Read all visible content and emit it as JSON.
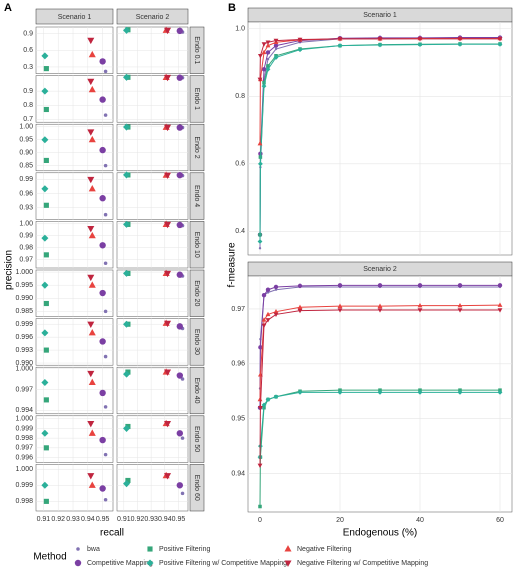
{
  "chart_data": [
    {
      "type": "scatter-grid",
      "label": "A",
      "xlabel": "recall",
      "ylabel": "precision",
      "legend_title": "Method",
      "columns": [
        "Scenario 1",
        "Scenario 2"
      ],
      "xlim": [
        0.905,
        0.957
      ],
      "xticks": [
        0.91,
        0.92,
        0.93,
        0.94,
        0.95
      ],
      "grid": true,
      "series": [
        {
          "name": "bwa",
          "color": "#8172b2",
          "shape": "small-circle"
        },
        {
          "name": "Competitive Mapping",
          "color": "#7b3fa3",
          "shape": "circle"
        },
        {
          "name": "Positive Filtering",
          "color": "#35a67a",
          "shape": "square"
        },
        {
          "name": "Positive Filtering w/ Competitive Mapping",
          "color": "#2bb09a",
          "shape": "diamond"
        },
        {
          "name": "Negative Filtering",
          "color": "#e8433f",
          "shape": "triangle-up"
        },
        {
          "name": "Negative Filtering w/ Competitive Mapping",
          "color": "#c0253f",
          "shape": "triangle-down"
        }
      ],
      "rows": [
        {
          "label": "Endo 0.1",
          "ylim": [
            0.18,
            1.02
          ],
          "yticks": [
            0.3,
            0.6,
            0.9
          ],
          "cells": [
            {
              "x": [
                0.952,
                0.95,
                0.912,
                0.911,
                0.943,
                0.942
              ],
              "y": [
                0.22,
                0.4,
                0.27,
                0.5,
                0.52,
                0.78
              ]
            },
            {
              "x": [
                0.953,
                0.951,
                0.913,
                0.912,
                0.941,
                0.942
              ],
              "y": [
                0.93,
                0.95,
                0.97,
                0.96,
                0.96,
                0.96
              ]
            }
          ]
        },
        {
          "label": "Endo 1",
          "ylim": [
            0.68,
            1.01
          ],
          "yticks": [
            0.7,
            0.8,
            0.9
          ],
          "cells": [
            {
              "x": [
                0.952,
                0.95,
                0.912,
                0.911,
                0.943,
                0.942
              ],
              "y": [
                0.73,
                0.84,
                0.77,
                0.9,
                0.91,
                0.97
              ]
            },
            {
              "x": [
                0.953,
                0.951,
                0.913,
                0.912,
                0.941,
                0.942
              ],
              "y": [
                0.995,
                0.995,
                0.998,
                0.998,
                0.997,
                0.997
              ]
            }
          ]
        },
        {
          "label": "Endo 2",
          "ylim": [
            0.83,
            1.01
          ],
          "yticks": [
            0.85,
            {
              "value": 0.9,
              "label": "0.90"
            },
            0.95,
            {
              "value": 1,
              "label": "1.00"
            }
          ],
          "cells": [
            {
              "x": [
                0.952,
                0.95,
                0.912,
                0.911,
                0.943,
                0.942
              ],
              "y": [
                0.85,
                0.91,
                0.87,
                0.95,
                0.95,
                0.98
              ]
            },
            {
              "x": [
                0.953,
                0.951,
                0.913,
                0.912,
                0.941,
                0.942
              ],
              "y": [
                0.997,
                0.997,
                0.999,
                0.999,
                0.998,
                0.998
              ]
            }
          ]
        },
        {
          "label": "Endo 4",
          "ylim": [
            0.905,
            1.004
          ],
          "yticks": [
            0.93,
            0.96,
            0.99
          ],
          "cells": [
            {
              "x": [
                0.952,
                0.95,
                0.912,
                0.911,
                0.943,
                0.942
              ],
              "y": [
                0.915,
                0.95,
                0.935,
                0.97,
                0.97,
                0.99
              ]
            },
            {
              "x": [
                0.953,
                0.951,
                0.913,
                0.912,
                0.941,
                0.942
              ],
              "y": [
                0.998,
                0.999,
                0.9995,
                0.9995,
                0.999,
                0.999
              ]
            }
          ]
        },
        {
          "label": "Endo 10",
          "ylim": [
            0.963,
            1.002
          ],
          "yticks": [
            0.97,
            0.98,
            0.99,
            {
              "value": 1,
              "label": "1.00"
            }
          ],
          "cells": [
            {
              "x": [
                0.952,
                0.95,
                0.912,
                0.911,
                0.943,
                0.942
              ],
              "y": [
                0.967,
                0.982,
                0.974,
                0.988,
                0.99,
                0.996
              ]
            },
            {
              "x": [
                0.953,
                0.951,
                0.913,
                0.912,
                0.941,
                0.942
              ],
              "y": [
                0.9985,
                0.999,
                0.9995,
                0.9995,
                0.9995,
                0.9995
              ]
            }
          ]
        },
        {
          "label": "Endo 20",
          "ylim": [
            0.983,
            1.0008
          ],
          "yticks": [
            0.985,
            {
              "value": 0.99,
              "label": "0.990"
            },
            0.995,
            {
              "value": 1,
              "label": "1.000"
            }
          ],
          "cells": [
            {
              "x": [
                0.952,
                0.95,
                0.912,
                0.911,
                0.943,
                0.942
              ],
              "y": [
                0.985,
                0.992,
                0.988,
                0.995,
                0.995,
                0.998
              ]
            },
            {
              "x": [
                0.953,
                0.951,
                0.913,
                0.912,
                0.941,
                0.942
              ],
              "y": [
                0.9985,
                0.999,
                0.9995,
                0.9995,
                0.9995,
                0.9995
              ]
            }
          ]
        },
        {
          "label": "Endo 30",
          "ylim": [
            0.9895,
            1.0003
          ],
          "yticks": [
            {
              "value": 0.99,
              "label": "0.990"
            },
            0.993,
            0.996,
            0.999
          ],
          "cells": [
            {
              "x": [
                0.952,
                0.95,
                0.912,
                0.911,
                0.943,
                0.942
              ],
              "y": [
                0.9915,
                0.995,
                0.993,
                0.997,
                0.997,
                0.999
              ]
            },
            {
              "x": [
                0.953,
                0.951,
                0.913,
                0.912,
                0.941,
                0.942
              ],
              "y": [
                0.998,
                0.9985,
                0.999,
                0.999,
                0.9992,
                0.9992
              ]
            }
          ]
        },
        {
          "label": "Endo 40",
          "ylim": [
            0.9935,
            1.0002
          ],
          "yticks": [
            0.994,
            0.997,
            {
              "value": 1,
              "label": "1.000"
            }
          ],
          "cells": [
            {
              "x": [
                0.952,
                0.95,
                0.912,
                0.911,
                0.943,
                0.942
              ],
              "y": [
                0.9945,
                0.9965,
                0.9955,
                0.998,
                0.998,
                0.9993
              ]
            },
            {
              "x": [
                0.953,
                0.951,
                0.913,
                0.912,
                0.941,
                0.942
              ],
              "y": [
                0.9985,
                0.999,
                0.9995,
                0.9992,
                0.9995,
                0.9995
              ]
            }
          ]
        },
        {
          "label": "Endo 50",
          "ylim": [
            0.9955,
            1.0003
          ],
          "yticks": [
            0.996,
            0.997,
            0.998,
            0.999,
            {
              "value": 1,
              "label": "1.000"
            }
          ],
          "cells": [
            {
              "x": [
                0.952,
                0.95,
                0.912,
                0.911,
                0.943,
                0.942
              ],
              "y": [
                0.9963,
                0.9978,
                0.997,
                0.9985,
                0.9985,
                0.9995
              ]
            },
            {
              "x": [
                0.953,
                0.951,
                0.913,
                0.912,
                0.941,
                0.942
              ],
              "y": [
                0.998,
                0.9985,
                0.9992,
                0.999,
                0.9995,
                0.9995
              ]
            }
          ]
        },
        {
          "label": "Endo 60",
          "ylim": [
            0.9974,
            1.0003
          ],
          "yticks": [
            0.998,
            0.999,
            {
              "value": 1,
              "label": "1.000"
            }
          ],
          "cells": [
            {
              "x": [
                0.952,
                0.95,
                0.912,
                0.911,
                0.943,
                0.942
              ],
              "y": [
                0.9981,
                0.9988,
                0.998,
                0.999,
                0.999,
                0.9996
              ]
            },
            {
              "x": [
                0.953,
                0.951,
                0.913,
                0.912,
                0.941,
                0.942
              ],
              "y": [
                0.9985,
                0.999,
                0.9993,
                0.9991,
                0.9996,
                0.9996
              ]
            }
          ]
        }
      ]
    },
    {
      "type": "line-grid",
      "label": "B",
      "xlabel": "Endogenous (%)",
      "ylabel": "f-measure",
      "x": [
        0,
        0.1,
        1,
        2,
        4,
        10,
        20,
        30,
        40,
        50,
        60
      ],
      "xlim": [
        -3,
        63
      ],
      "xticks": [
        0,
        20,
        40,
        60
      ],
      "grid": true,
      "panels": [
        {
          "title": "Scenario 1",
          "ylim": [
            0.33,
            1.02
          ],
          "yticks": [
            0.4,
            0.6,
            0.8,
            {
              "value": 1,
              "label": "1.0"
            }
          ],
          "series": [
            {
              "values": [
                0.35,
                0.59,
                0.85,
                0.91,
                0.94,
                0.96,
                0.97,
                0.972,
                0.972,
                0.973,
                0.973
              ]
            },
            {
              "values": [
                0.39,
                0.63,
                0.88,
                0.93,
                0.95,
                0.965,
                0.972,
                0.973,
                0.973,
                0.974,
                0.974
              ]
            },
            {
              "values": [
                0.39,
                0.62,
                0.84,
                0.89,
                0.92,
                0.94,
                0.95,
                0.953,
                0.954,
                0.955,
                0.955
              ]
            },
            {
              "values": [
                0.37,
                0.6,
                0.83,
                0.88,
                0.915,
                0.938,
                0.95,
                0.952,
                0.953,
                0.954,
                0.954
              ]
            },
            {
              "values": [
                0.66,
                0.85,
                0.93,
                0.95,
                0.96,
                0.967,
                0.97,
                0.97,
                0.971,
                0.971,
                0.971
              ]
            },
            {
              "values": [
                0.85,
                0.92,
                0.955,
                0.96,
                0.965,
                0.968,
                0.97,
                0.97,
                0.97,
                0.97,
                0.97
              ]
            }
          ]
        },
        {
          "title": "Scenario 2",
          "ylim": [
            0.933,
            0.976
          ],
          "yticks": [
            0.94,
            0.95,
            0.96,
            0.97
          ],
          "series": [
            {
              "values": [
                0.9555,
                0.9645,
                0.9725,
                0.973,
                0.9735,
                0.974,
                0.974,
                0.974,
                0.974,
                0.974,
                0.974
              ]
            },
            {
              "values": [
                0.952,
                0.963,
                0.9725,
                0.9735,
                0.974,
                0.9742,
                0.9743,
                0.9743,
                0.9743,
                0.9743,
                0.9743
              ]
            },
            {
              "values": [
                0.934,
                0.943,
                0.952,
                0.9535,
                0.954,
                0.955,
                0.9552,
                0.9552,
                0.9552,
                0.9552,
                0.9552
              ]
            },
            {
              "values": [
                0.943,
                0.945,
                0.9525,
                0.9535,
                0.954,
                0.9548,
                0.9548,
                0.9548,
                0.9548,
                0.9548,
                0.9548
              ]
            },
            {
              "values": [
                0.9535,
                0.958,
                0.968,
                0.969,
                0.9695,
                0.9703,
                0.9705,
                0.9705,
                0.9706,
                0.9706,
                0.9707
              ]
            },
            {
              "values": [
                0.9415,
                0.952,
                0.967,
                0.968,
                0.969,
                0.9697,
                0.9698,
                0.9698,
                0.9698,
                0.9698,
                0.9698
              ]
            }
          ]
        }
      ]
    }
  ]
}
